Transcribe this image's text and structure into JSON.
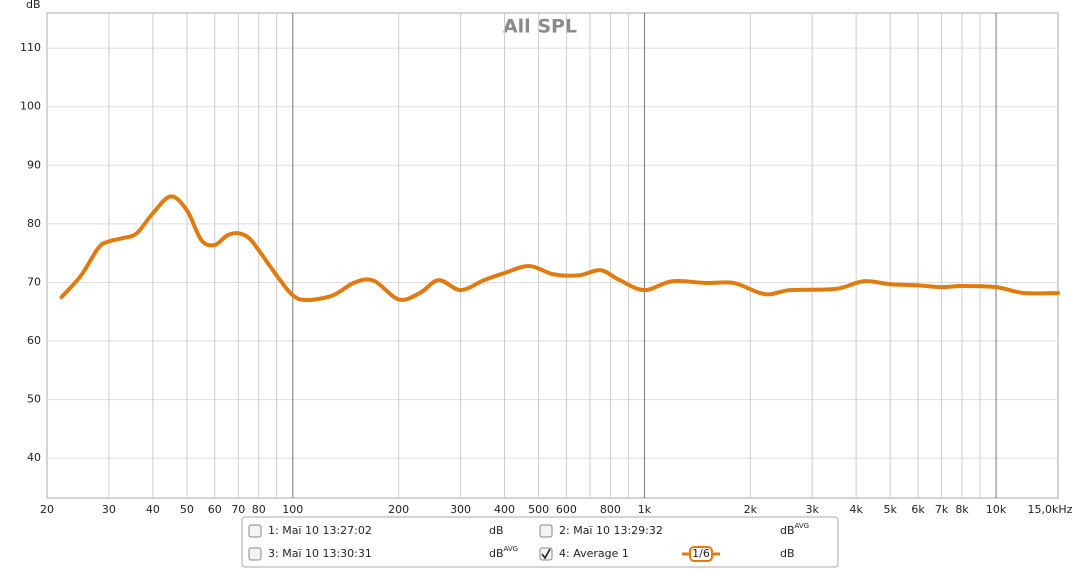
{
  "chart_data": {
    "type": "line",
    "title": "All SPL",
    "y_label": "dB",
    "xscale": "log",
    "xlim": [
      20,
      15000
    ],
    "ylim": [
      33.2,
      116
    ],
    "xticks": [
      20,
      30,
      40,
      50,
      60,
      70,
      80,
      100,
      200,
      300,
      400,
      500,
      600,
      800,
      {
        "value": 1000,
        "label": "1k"
      },
      {
        "value": 2000,
        "label": "2k"
      },
      {
        "value": 3000,
        "label": "3k"
      },
      {
        "value": 4000,
        "label": "4k"
      },
      {
        "value": 5000,
        "label": "5k"
      },
      {
        "value": 6000,
        "label": "6k"
      },
      {
        "value": 7000,
        "label": "7k"
      },
      {
        "value": 8000,
        "label": "8k"
      },
      {
        "value": 10000,
        "label": "10k"
      },
      {
        "value": 15000,
        "label": "15,0kHz"
      }
    ],
    "x_minor_grid": [
      90,
      700,
      900,
      9000
    ],
    "x_major_grid": [
      100,
      1000,
      10000
    ],
    "yticks": [
      40,
      50,
      60,
      70,
      80,
      90,
      100,
      110
    ],
    "grid": true,
    "x": [
      22,
      25,
      28,
      30,
      33,
      36,
      40,
      45,
      50,
      55,
      60,
      65,
      70,
      75,
      80,
      90,
      100,
      110,
      130,
      150,
      170,
      200,
      230,
      260,
      300,
      350,
      400,
      470,
      550,
      650,
      750,
      850,
      1000,
      1200,
      1500,
      1800,
      2200,
      2600,
      3500,
      4200,
      5000,
      6000,
      7000,
      8000,
      10000,
      12000,
      15000
    ],
    "series": [
      {
        "name": "4: Average 1",
        "color": "#e07b0f",
        "unit": "dB",
        "smoothing": "1/6",
        "checked": true,
        "values": [
          67.5,
          71.2,
          75.9,
          77.0,
          77.6,
          78.4,
          81.8,
          84.7,
          82.3,
          77.2,
          76.4,
          78.0,
          78.4,
          77.6,
          75.5,
          71.2,
          67.8,
          67.0,
          67.8,
          70.0,
          70.3,
          67.1,
          68.2,
          70.4,
          68.7,
          70.4,
          71.6,
          72.8,
          71.4,
          71.2,
          72.1,
          70.4,
          68.7,
          70.2,
          69.9,
          69.9,
          68.0,
          68.7,
          68.9,
          70.2,
          69.7,
          69.5,
          69.2,
          69.4,
          69.2,
          68.2,
          68.2
        ]
      }
    ],
    "hidden_measurements": [
      {
        "name": "1: Маї 10 13:27:02",
        "color": "#c00000",
        "unit": "dB",
        "checked": false
      },
      {
        "name": "2: Маї 10 13:29:32",
        "color": "#2e8b2e",
        "unit": "dB",
        "unit_sup": "AVG",
        "checked": false
      },
      {
        "name": "3: Маї 10 13:30:31",
        "color": "#4040c0",
        "unit": "dB",
        "unit_sup": "AVG",
        "checked": false
      }
    ]
  }
}
